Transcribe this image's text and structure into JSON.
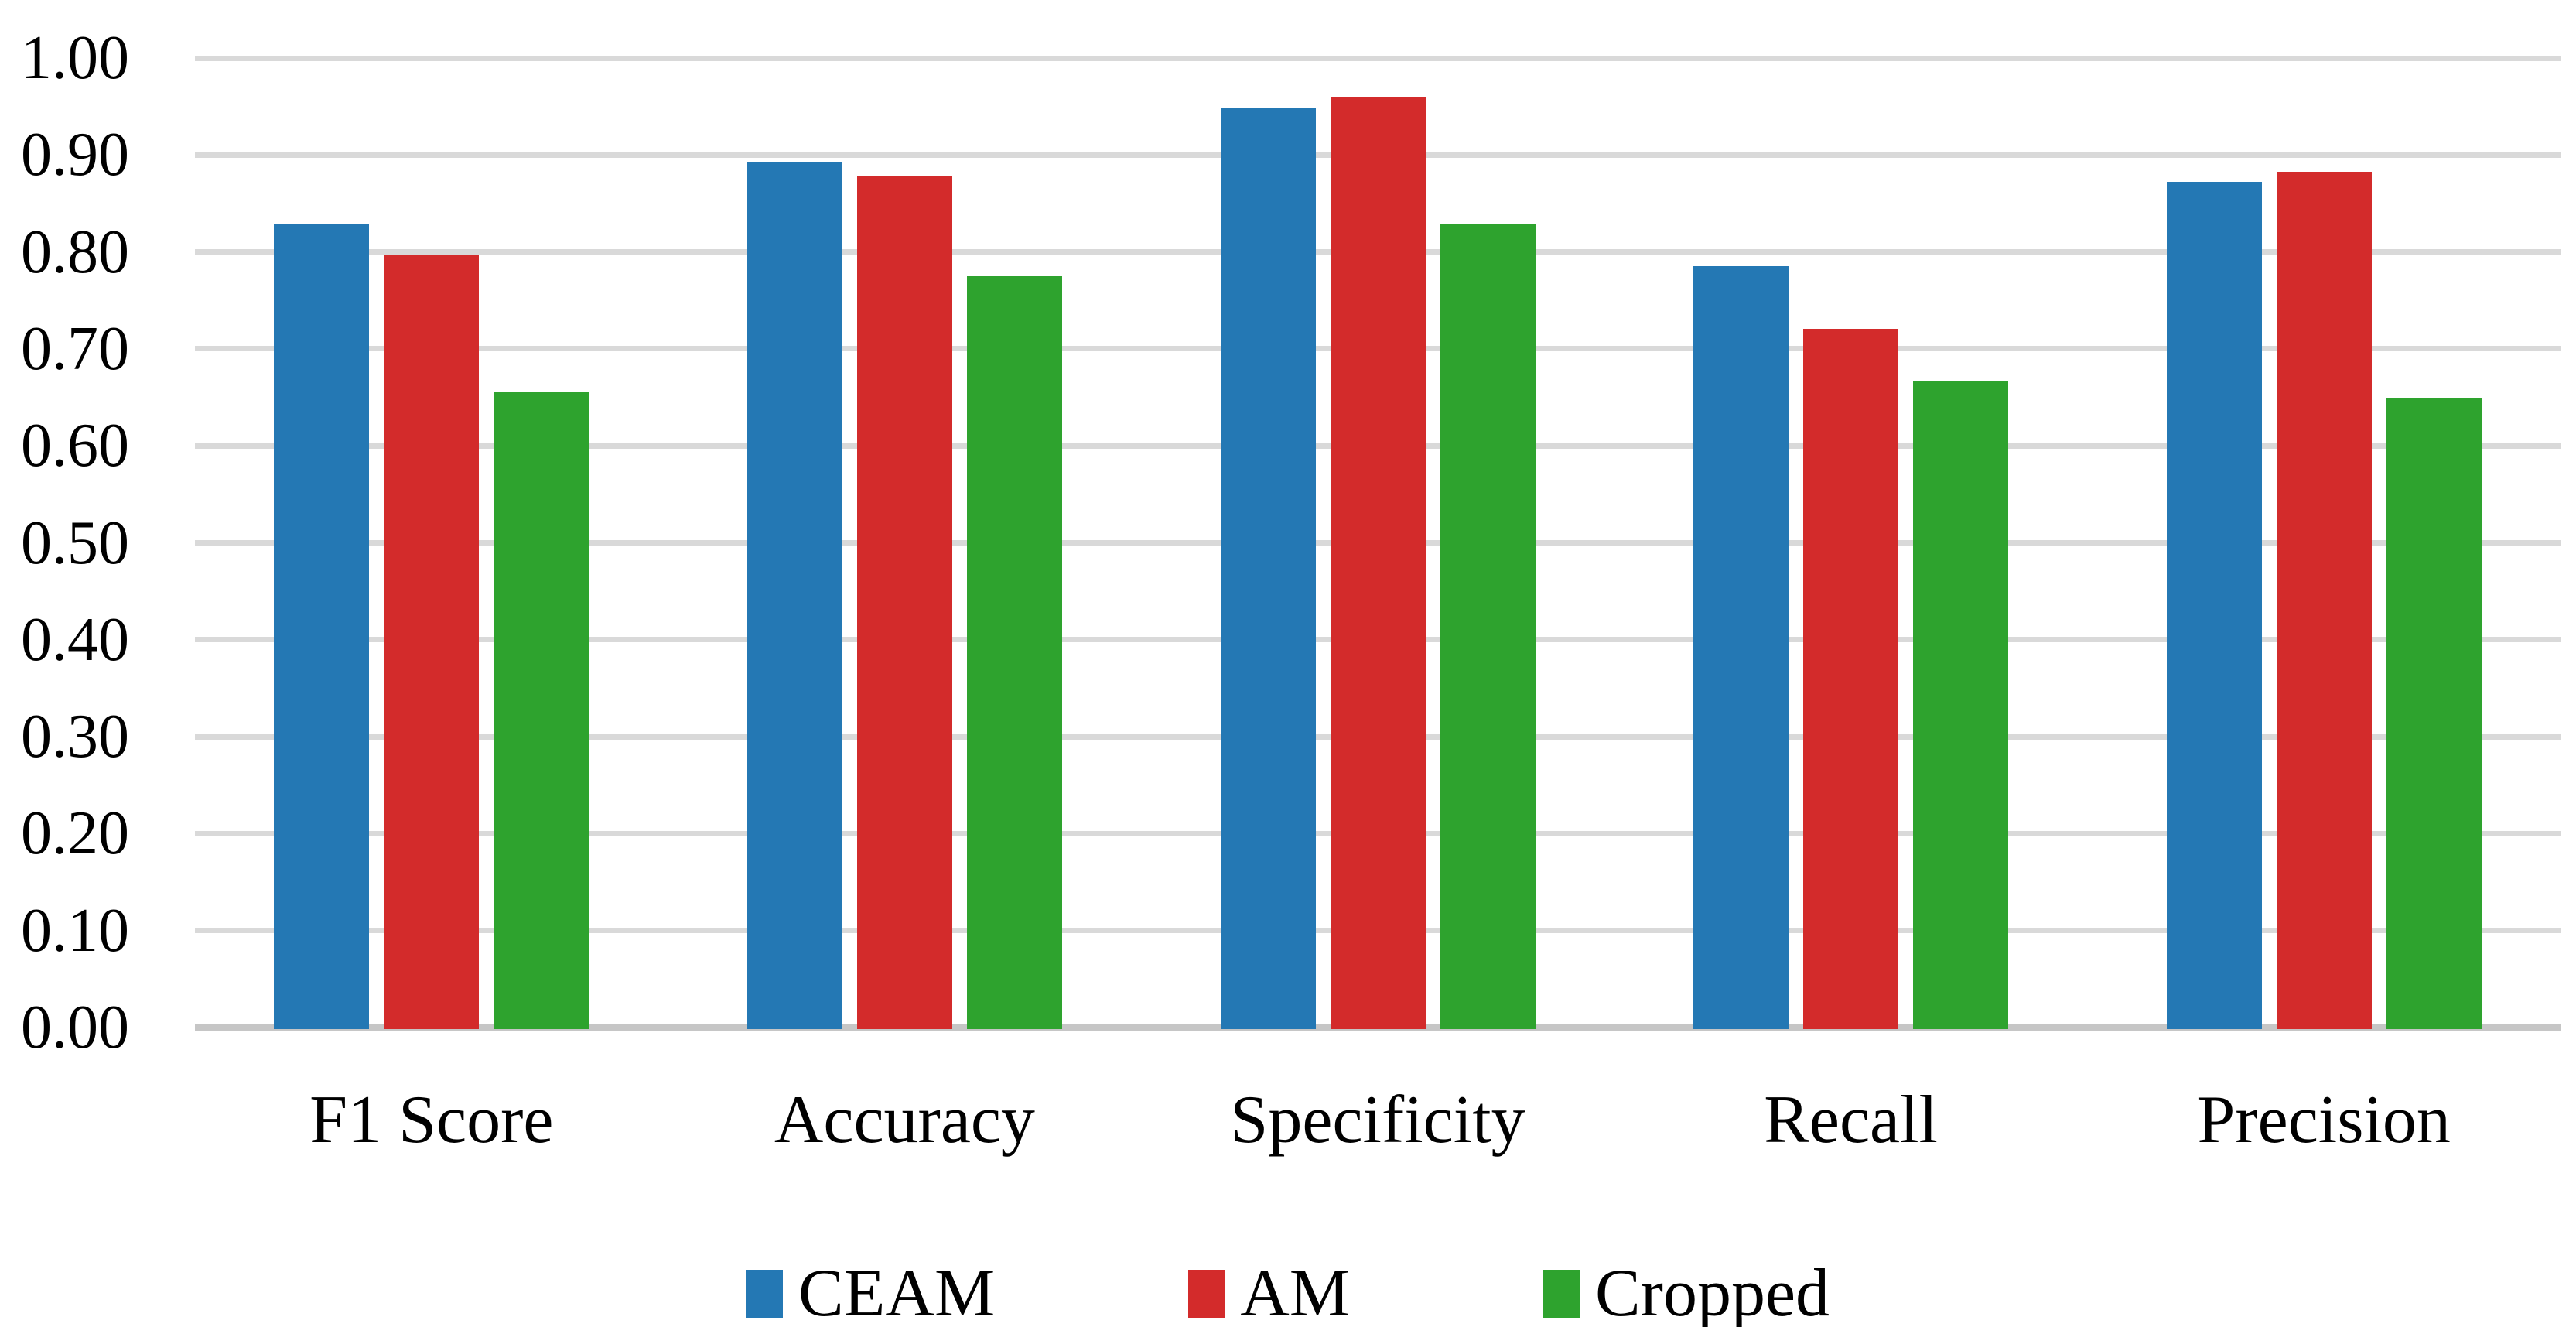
{
  "chart_data": {
    "type": "bar",
    "title": "",
    "xlabel": "",
    "ylabel": "",
    "categories": [
      "F1 Score",
      "Accuracy",
      "Specificity",
      "Recall",
      "Precision"
    ],
    "series": [
      {
        "name": "CEAM",
        "color": "#2478B4",
        "values": [
          0.829,
          0.892,
          0.949,
          0.785,
          0.872
        ]
      },
      {
        "name": "AM",
        "color": "#D32B2B",
        "values": [
          0.797,
          0.878,
          0.959,
          0.721,
          0.883
        ]
      },
      {
        "name": "Cropped",
        "color": "#2EA32E",
        "values": [
          0.656,
          0.775,
          0.829,
          0.667,
          0.65
        ]
      }
    ],
    "y_axis": {
      "min": 0.0,
      "max": 1.0,
      "step": 0.1,
      "tick_labels": [
        "1.00",
        "0.90",
        "0.80",
        "0.70",
        "0.60",
        "0.50",
        "0.40",
        "0.30",
        "0.20",
        "0.10",
        "0.00"
      ]
    },
    "grid": true,
    "legend_position": "bottom",
    "colors": {
      "gridline": "#D9D9D9",
      "axis_line": "#C6C6C6",
      "background": "#FFFFFF",
      "text": "#000000"
    }
  }
}
